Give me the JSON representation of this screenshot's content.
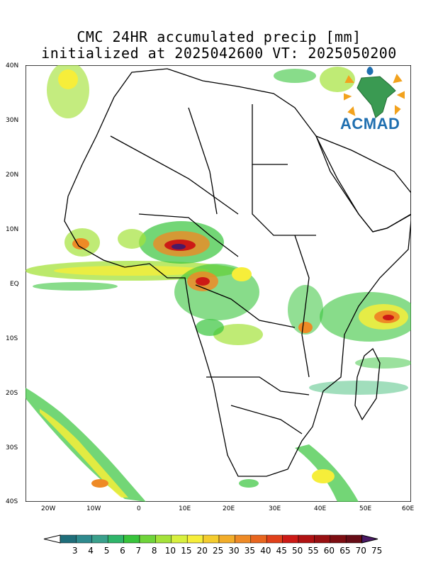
{
  "title": {
    "line1": "CMC 24HR accumulated precip [mm]",
    "line2": "initialized at 2025042600 VT: 2025050200"
  },
  "logo": {
    "text": "ACMAD",
    "icon": "africa-globe-logo-icon"
  },
  "lat_labels": [
    "40N",
    "30N",
    "20N",
    "10N",
    "EQ",
    "10S",
    "20S",
    "30S",
    "40S"
  ],
  "lon_labels": [
    "20W",
    "10W",
    "0",
    "10E",
    "20E",
    "30E",
    "40E",
    "50E",
    "60E"
  ],
  "legend": {
    "values": [
      "3",
      "4",
      "5",
      "6",
      "7",
      "8",
      "10",
      "15",
      "20",
      "25",
      "30",
      "35",
      "40",
      "45",
      "50",
      "55",
      "60",
      "65",
      "70",
      "75"
    ],
    "colors": [
      "#1f6e7a",
      "#2e8a8e",
      "#3aa08c",
      "#2fb56a",
      "#38c43c",
      "#6fd43a",
      "#a4e23a",
      "#d8f03e",
      "#f6ee3a",
      "#f4cc2e",
      "#f2ad2a",
      "#ee8a26",
      "#e8661f",
      "#e0401a",
      "#cc1a16",
      "#b01213",
      "#981012",
      "#7d0e12",
      "#660c16",
      "#4a1a66"
    ]
  },
  "precip_colors": {
    "light": "#3aa08c",
    "green": "#38c43c",
    "lime": "#a4e23a",
    "yellow": "#f6ee3a",
    "orange": "#ee8a26",
    "red": "#cc1a16",
    "maroon": "#7d0e12",
    "purple": "#4a1a66"
  }
}
